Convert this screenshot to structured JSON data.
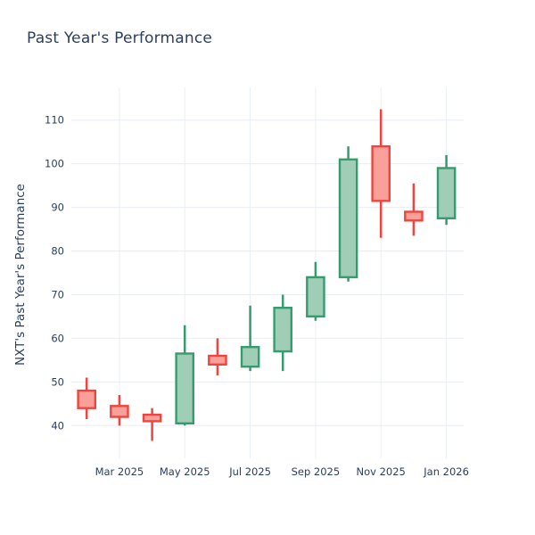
{
  "chart_data": {
    "type": "candlestick",
    "title": "Past Year's Performance",
    "ylabel": "NXT's Past Year's Performance",
    "xlabel": "",
    "grid": true,
    "legend": "none",
    "ylim": [
      32.5,
      117.5
    ],
    "y_ticks": [
      40,
      50,
      60,
      70,
      80,
      90,
      100,
      110
    ],
    "x_ticks": [
      {
        "label": "Mar 2025",
        "index": 1
      },
      {
        "label": "May 2025",
        "index": 3
      },
      {
        "label": "Jul 2025",
        "index": 5
      },
      {
        "label": "Sep 2025",
        "index": 7
      },
      {
        "label": "Nov 2025",
        "index": 9
      },
      {
        "label": "Jan 2026",
        "index": 11
      }
    ],
    "candles": [
      {
        "month": "Feb 2025",
        "open": 48,
        "high": 51,
        "low": 41.5,
        "close": 44
      },
      {
        "month": "Mar 2025",
        "open": 44.5,
        "high": 47,
        "low": 40,
        "close": 42
      },
      {
        "month": "Apr 2025",
        "open": 42.5,
        "high": 44,
        "low": 36.5,
        "close": 41
      },
      {
        "month": "May 2025",
        "open": 40.5,
        "high": 63,
        "low": 40,
        "close": 56.5
      },
      {
        "month": "Jun 2025",
        "open": 56,
        "high": 60,
        "low": 51.5,
        "close": 54
      },
      {
        "month": "Jul 2025",
        "open": 53.5,
        "high": 67.5,
        "low": 52.5,
        "close": 58
      },
      {
        "month": "Aug 2025",
        "open": 57,
        "high": 70,
        "low": 52.5,
        "close": 67
      },
      {
        "month": "Sep 2025",
        "open": 65,
        "high": 77.5,
        "low": 64,
        "close": 74
      },
      {
        "month": "Oct 2025",
        "open": 74,
        "high": 104,
        "low": 73,
        "close": 101
      },
      {
        "month": "Nov 2025",
        "open": 104,
        "high": 112.5,
        "low": 83,
        "close": 91.5
      },
      {
        "month": "Dec 2025",
        "open": 89,
        "high": 95.5,
        "low": 83.5,
        "close": 87
      },
      {
        "month": "Jan 2026",
        "open": 87.5,
        "high": 102,
        "low": 86,
        "close": 99
      }
    ],
    "colors": {
      "up_line": "#359c6d",
      "up_fill": "#9fcdb6",
      "down_line": "#f0453e",
      "down_fill": "#faa09a",
      "text": "#2a3f5f",
      "grid": "#e9eef5",
      "background": "#ffffff"
    }
  }
}
